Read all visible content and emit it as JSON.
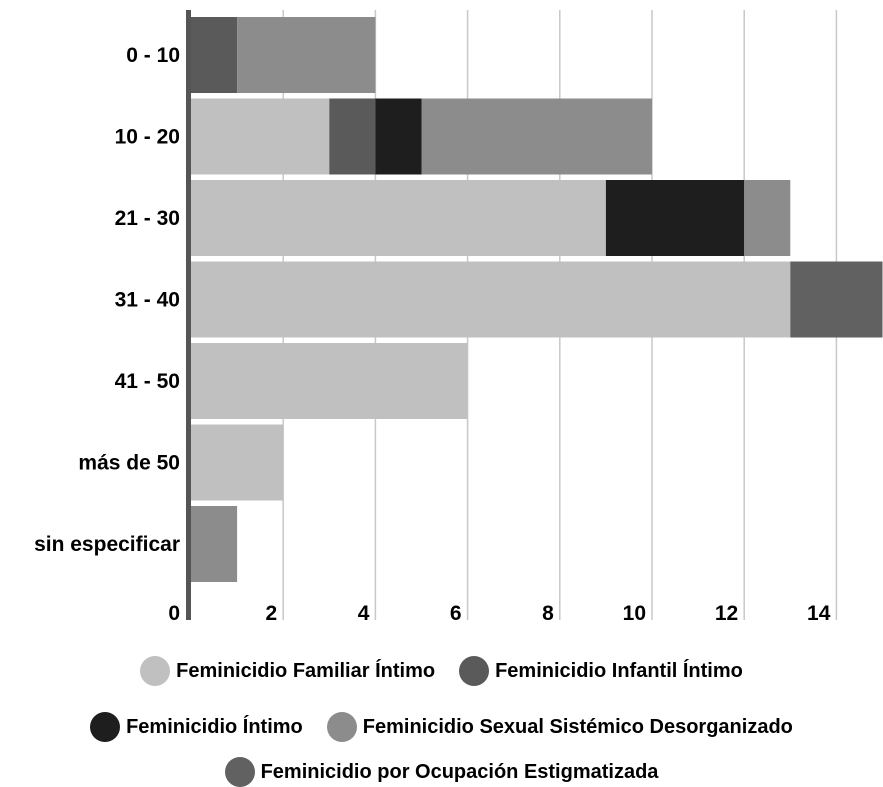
{
  "chart_data": {
    "type": "bar",
    "orientation": "horizontal",
    "stacked": true,
    "categories": [
      "0 - 10",
      "10 - 20",
      "21 - 30",
      "31 - 40",
      "41 - 50",
      "más de 50",
      "sin especificar"
    ],
    "series": [
      {
        "name": "Feminicidio Familiar Íntimo",
        "color": "#c0c0c0",
        "values": [
          0,
          3,
          9,
          13,
          6,
          2,
          0
        ]
      },
      {
        "name": "Feminicidio Infantil Íntimo",
        "color": "#5a5a5a",
        "values": [
          1,
          1,
          0,
          0,
          0,
          0,
          0
        ]
      },
      {
        "name": "Feminicidio Íntimo",
        "color": "#1e1e1e",
        "values": [
          0,
          1,
          3,
          0,
          0,
          0,
          0
        ]
      },
      {
        "name": "Feminicidio Sexual Sistémico Desorganizado",
        "color": "#8c8c8c",
        "values": [
          3,
          5,
          1,
          0,
          0,
          0,
          1
        ]
      },
      {
        "name": "Feminicidio  por Ocupación Estigmatizada",
        "color": "#616161",
        "values": [
          0,
          0,
          0,
          2,
          0,
          0,
          0
        ]
      }
    ],
    "x_ticks": [
      "0",
      "2",
      "4",
      "6",
      "8",
      "10",
      "12",
      "14"
    ],
    "xlim": [
      0,
      15
    ],
    "grid": true,
    "legend_position": "bottom",
    "title": "",
    "xlabel": "",
    "ylabel": ""
  }
}
